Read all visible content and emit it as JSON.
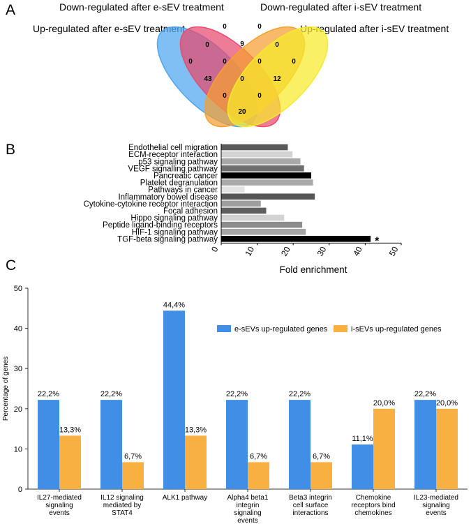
{
  "panels": {
    "a": "A",
    "b": "B",
    "c": "C"
  },
  "chart_data": [
    {
      "type": "venn",
      "panel": "A",
      "sets": [
        "Up-regulated after e-sEV treatment",
        "Down-regulated after e-sEV treatment",
        "Down-regulated after i-sEV treatment",
        "Up-regulated after i-sEV treatment"
      ],
      "colors": [
        "#4da6ee",
        "#e84a6e",
        "#f5a030",
        "#f7ea2a"
      ],
      "regions": [
        {
          "sets": [
            "Up e-sEV"
          ],
          "value": 0
        },
        {
          "sets": [
            "Down e-sEV"
          ],
          "value": 0
        },
        {
          "sets": [
            "Down i-sEV"
          ],
          "value": 0
        },
        {
          "sets": [
            "Up i-sEV"
          ],
          "value": 0
        },
        {
          "sets": [
            "Up e-sEV",
            "Down e-sEV"
          ],
          "value": 0
        },
        {
          "sets": [
            "Down e-sEV",
            "Down i-sEV"
          ],
          "value": 9
        },
        {
          "sets": [
            "Down i-sEV",
            "Up i-sEV"
          ],
          "value": 0
        },
        {
          "sets": [
            "Up e-sEV",
            "Down e-sEV",
            "Down i-sEV"
          ],
          "value": 0
        },
        {
          "sets": [
            "Down e-sEV",
            "Down i-sEV",
            "Up i-sEV"
          ],
          "value": 0
        },
        {
          "sets": [
            "Up e-sEV",
            "Down i-sEV"
          ],
          "value": 43
        },
        {
          "sets": [
            "Up e-sEV",
            "Down e-sEV",
            "Down i-sEV",
            "Up i-sEV"
          ],
          "value": 0
        },
        {
          "sets": [
            "Down e-sEV",
            "Up i-sEV"
          ],
          "value": 12
        },
        {
          "sets": [
            "Up e-sEV",
            "Down i-sEV",
            "Up i-sEV"
          ],
          "value": 0
        },
        {
          "sets": [
            "Up e-sEV",
            "Down e-sEV",
            "Up i-sEV"
          ],
          "value": 0
        },
        {
          "sets": [
            "Up e-sEV",
            "Up i-sEV"
          ],
          "value": 20
        }
      ]
    },
    {
      "type": "bar",
      "orientation": "horizontal",
      "panel": "B",
      "categories": [
        "Endothelial cell migration",
        "ECM-receptor interaction",
        "p53 signaling pathway",
        "VEGF signalling pathway",
        "Pancreatic cancer",
        "Platelet degranulation",
        "Pathways in cancer",
        "Inflammatory bowel disease",
        "Cytokine-cytokine receptor interaction",
        "Focal adhesion",
        "Hippo signaling pathway",
        "Peptide ligand-binding receptors",
        "HIF-1 signaling pathway",
        "TGF-beta signaling pathway"
      ],
      "values": [
        18.5,
        19.8,
        22,
        23,
        25,
        25.5,
        6.5,
        26,
        11,
        12.5,
        17.5,
        22.5,
        23.5,
        41.5
      ],
      "bar_colors": [
        "#595959",
        "#d3d3d3",
        "#a8a8a8",
        "#6e6e6e",
        "#000000",
        "#a9a9a9",
        "#e3e3e3",
        "#555555",
        "#9e9e9e",
        "#5f5f5f",
        "#d2d2d2",
        "#8c8c8c",
        "#a6a6a6",
        "#000000"
      ],
      "annotation": {
        "category": "TGF-beta signaling pathway",
        "text": "*"
      },
      "xlabel": "Fold enrichment",
      "xlim": [
        0,
        50
      ],
      "xticks": [
        0,
        10,
        20,
        30,
        40,
        50
      ]
    },
    {
      "type": "bar",
      "orientation": "vertical",
      "panel": "C",
      "categories": [
        "IL27-mediated signaling events",
        "IL12 signaling mediated by STAT4",
        "ALK1 pathway",
        "Alpha4 beta1 integrin signaling events",
        "Beta3 integrin cell surface interactions",
        "Chemokine receptors bind chemokines",
        "IL23-mediated signaling events"
      ],
      "category_lines": [
        [
          "IL27-mediated",
          "signaling",
          "events"
        ],
        [
          "IL12 signaling",
          "mediated by",
          "STAT4"
        ],
        [
          "ALK1 pathway"
        ],
        [
          "Alpha4 beta1",
          "integrin",
          "signaling",
          "events"
        ],
        [
          "Beta3 integrin",
          "cell surface",
          "interactions"
        ],
        [
          "Chemokine",
          "receptors bind",
          "chemokines"
        ],
        [
          "IL23-mediated",
          "signaling",
          "events"
        ]
      ],
      "series": [
        {
          "name": "e-sEVs up-regulated genes",
          "color": "#418ee6",
          "values": [
            22.2,
            22.2,
            44.4,
            22.2,
            22.2,
            11.1,
            22.2
          ],
          "labels": [
            "22,2%",
            "22,2%",
            "44,4%",
            "22,2%",
            "22,2%",
            "11,1%",
            "22,2%"
          ]
        },
        {
          "name": "i-sEVs up-regulated genes",
          "color": "#f8b040",
          "values": [
            13.3,
            6.7,
            13.3,
            6.7,
            6.7,
            20.0,
            20.0
          ],
          "labels": [
            "13,3%",
            "6,7%",
            "13,3%",
            "6,7%",
            "6,7%",
            "20,0%",
            "20,0%"
          ]
        }
      ],
      "ylabel": "Percentage of genes",
      "ylim": [
        0,
        50
      ],
      "yticks": [
        0,
        10,
        20,
        30,
        40,
        50
      ],
      "legend_position": "top-right"
    }
  ]
}
